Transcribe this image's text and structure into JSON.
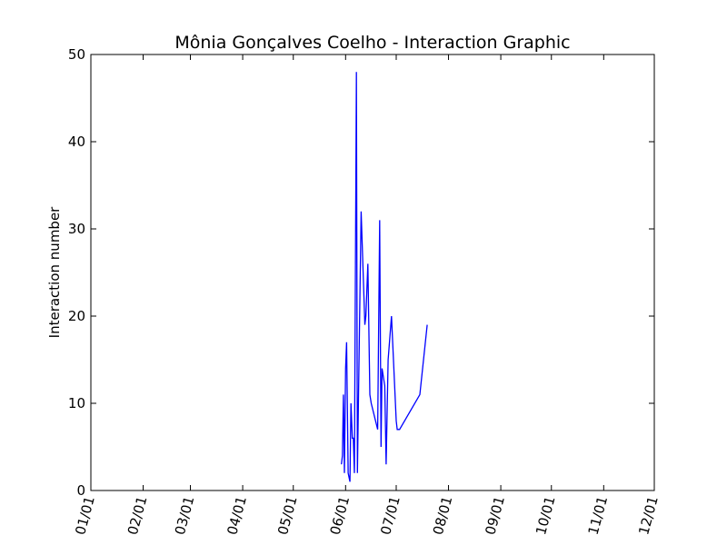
{
  "chart_data": {
    "type": "line",
    "title": "Mônia Gonçalves Coelho - Interaction Graphic",
    "xlabel": "",
    "ylabel": "Interaction number",
    "x_ticks": [
      "01/01",
      "02/01",
      "03/01",
      "04/01",
      "05/01",
      "06/01",
      "07/01",
      "08/01",
      "09/01",
      "10/01",
      "11/01",
      "12/01"
    ],
    "x_tick_days": [
      0,
      31,
      59,
      90,
      120,
      151,
      181,
      212,
      243,
      273,
      304,
      334
    ],
    "xlim_days": [
      0,
      334
    ],
    "y_ticks": [
      0,
      10,
      20,
      30,
      40,
      50
    ],
    "ylim": [
      0,
      50
    ],
    "grid": false,
    "series": [
      {
        "color": "#0000ff",
        "x_days": [
          148.5,
          149.1,
          149.7,
          150.3,
          151.0,
          151.6,
          152.5,
          153.6,
          154.2,
          155.0,
          155.6,
          156.2,
          157.4,
          158.0,
          160.2,
          162.4,
          163.0,
          164.2,
          165.4,
          166.2,
          170.0,
          171.2,
          172.0,
          172.6,
          173.4,
          174.2,
          175.0,
          176.2,
          178.2,
          181.0,
          181.6,
          183.0,
          195.0,
          199.4
        ],
        "y": [
          3,
          4,
          11,
          2,
          14,
          17,
          2,
          1,
          10,
          6,
          6,
          2,
          48,
          2,
          32,
          19,
          20,
          26,
          11,
          10,
          7,
          31,
          5,
          14,
          13,
          12,
          3,
          15,
          20,
          8,
          7,
          7,
          11,
          19
        ]
      }
    ]
  }
}
